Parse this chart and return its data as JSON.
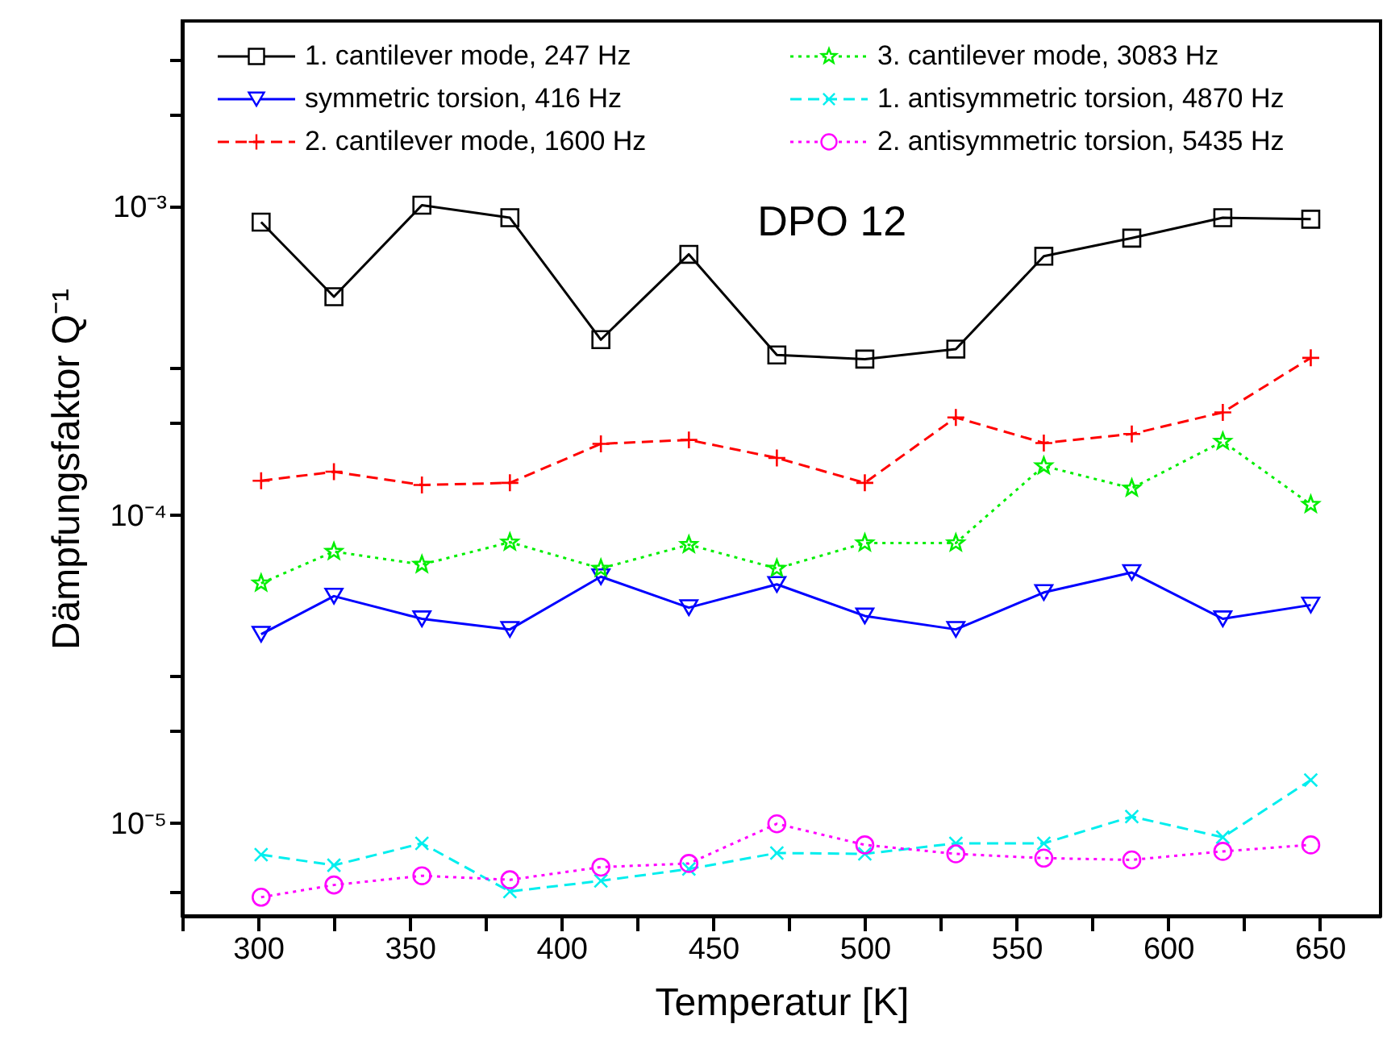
{
  "chart_data": {
    "type": "line",
    "xlabel": "Temperatur [K]",
    "ylabel": "Dämpfungsfaktor Q⁻¹",
    "annotations": [
      "DPO 12"
    ],
    "x": [
      301,
      325,
      354,
      383,
      413,
      442,
      471,
      500,
      530,
      559,
      588,
      618,
      647
    ],
    "series": [
      {
        "name": "1. cantilever mode, 247 Hz",
        "color": "#000000",
        "marker": "square",
        "line_style": "solid",
        "values": [
          0.00089,
          0.00051,
          0.00101,
          0.00092,
          0.00037,
          0.0007,
          0.00033,
          0.00032,
          0.000345,
          0.00069,
          0.00079,
          0.00092,
          0.00091
        ]
      },
      {
        "name": "symmetric torsion, 416 Hz",
        "color": "#0000ff",
        "marker": "triangle",
        "line_style": "solid",
        "values": [
          4.1e-05,
          5.45e-05,
          4.6e-05,
          4.25e-05,
          6.3e-05,
          5e-05,
          5.95e-05,
          4.7e-05,
          4.25e-05,
          5.6e-05,
          6.5e-05,
          4.6e-05,
          5.1e-05
        ]
      },
      {
        "name": "2. cantilever mode, 1600 Hz",
        "color": "#ff0000",
        "marker": "plus",
        "line_style": "dashed",
        "values": [
          0.000129,
          0.000138,
          0.000125,
          0.000127,
          0.00017,
          0.000175,
          0.000153,
          0.000127,
          0.000207,
          0.000171,
          0.000183,
          0.000215,
          0.000323
        ]
      },
      {
        "name": "3. cantilever mode, 3083 Hz",
        "color": "#00ee00",
        "marker": "star",
        "line_style": "dotted",
        "values": [
          6e-05,
          7.6e-05,
          6.9e-05,
          8.15e-05,
          6.7e-05,
          8e-05,
          6.7e-05,
          8.1e-05,
          8.1e-05,
          0.000144,
          0.000122,
          0.000173,
          0.000108
        ]
      },
      {
        "name": "1. antisymmetric torsion, 4870 Hz",
        "color": "#00eeee",
        "marker": "cross",
        "line_style": "dashed",
        "values": [
          7.9e-06,
          7.3e-06,
          8.6e-06,
          6e-06,
          6.5e-06,
          7.1e-06,
          8e-06,
          7.95e-06,
          8.6e-06,
          8.6e-06,
          1.05e-05,
          9e-06,
          1.38e-05
        ]
      },
      {
        "name": "2. antisymmetric torsion, 5435 Hz",
        "color": "#ff00ff",
        "marker": "circle",
        "line_style": "dotted",
        "values": [
          5.75e-06,
          6.3e-06,
          6.75e-06,
          6.55e-06,
          7.2e-06,
          7.4e-06,
          9.95e-06,
          8.5e-06,
          7.95e-06,
          7.7e-06,
          7.6e-06,
          8.1e-06,
          8.5e-06
        ]
      }
    ],
    "log": "y",
    "grid": false,
    "legend": "top",
    "xlim": [
      275,
      670
    ],
    "xticks": [
      {
        "value": 275,
        "label": null
      },
      300,
      {
        "value": 325,
        "label": null
      },
      350,
      {
        "value": 375,
        "label": null
      },
      400,
      {
        "value": 425,
        "label": null
      },
      450,
      {
        "value": 475,
        "label": null
      },
      500,
      {
        "value": 525,
        "label": null
      },
      550,
      {
        "value": 575,
        "label": null
      },
      600,
      {
        "value": 625,
        "label": null
      },
      650
    ],
    "ylim": [
      5e-06,
      0.004
    ],
    "yticks": [
      {
        "value": 6e-06,
        "label": null
      },
      {
        "value": 1e-05,
        "label": "10⁻⁵"
      },
      {
        "value": 2e-05,
        "label": null
      },
      {
        "value": 3e-05,
        "label": null
      },
      {
        "value": 0.0001,
        "label": "10⁻⁴"
      },
      {
        "value": 0.0002,
        "label": null
      },
      {
        "value": 0.0003,
        "label": null
      },
      {
        "value": 0.001,
        "label": "10⁻³"
      },
      {
        "value": 0.002,
        "label": null
      },
      {
        "value": 0.003,
        "label": null
      }
    ]
  }
}
